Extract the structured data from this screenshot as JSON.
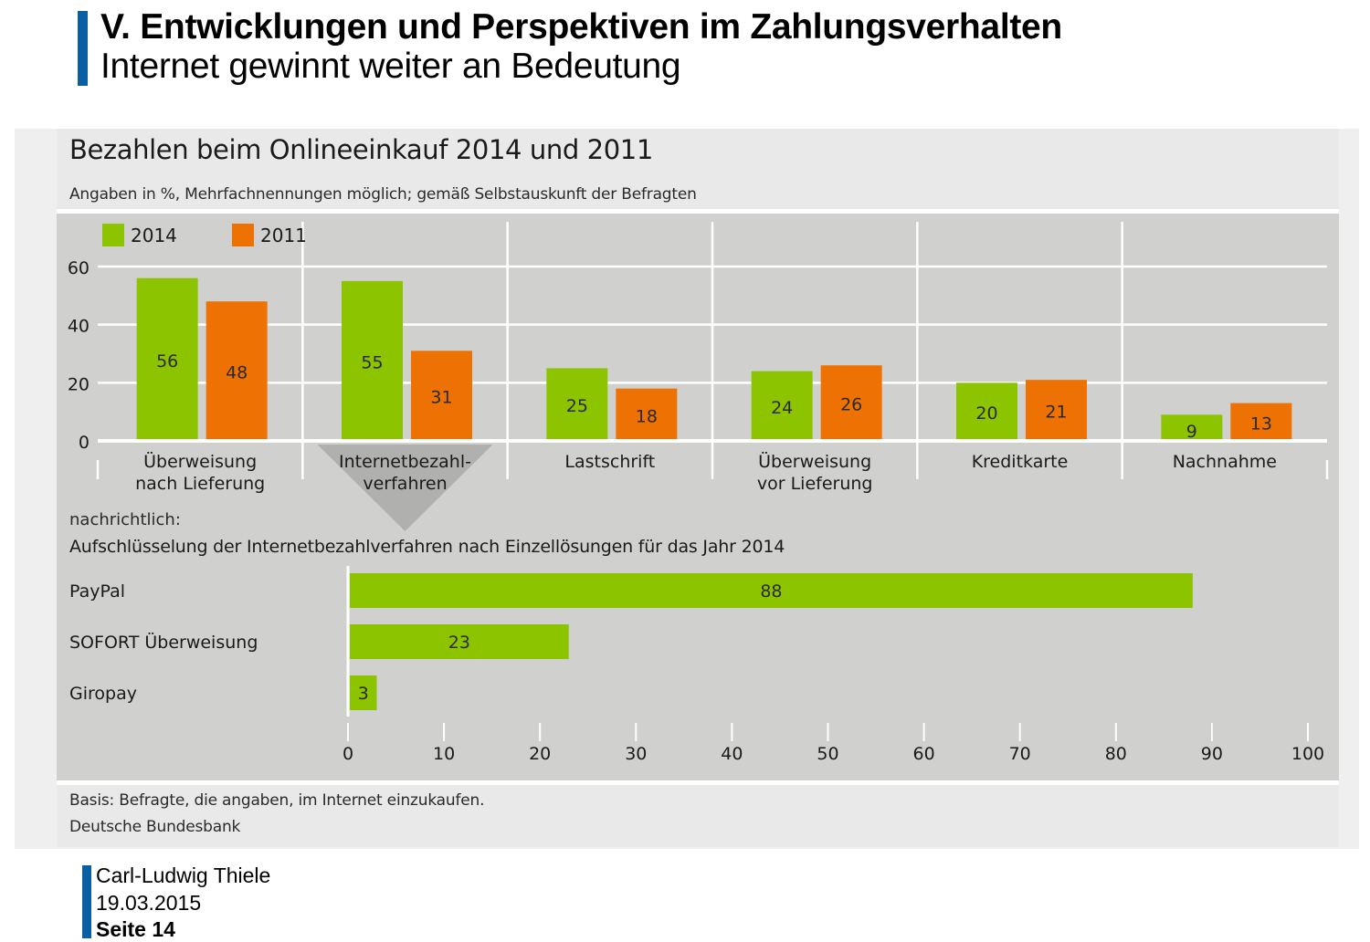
{
  "slide": {
    "title": "V. Entwicklungen und Perspektiven im Zahlungsverhalten",
    "subtitle": "Internet gewinnt weiter an Bedeutung",
    "accent_color": "#0a5fa3"
  },
  "footer": {
    "author": "Carl-Ludwig Thiele",
    "date": "19.03.2015",
    "page": "Seite 14"
  },
  "chart_data": [
    {
      "type": "bar",
      "title": "Bezahlen beim Onlineeinkauf 2014 und 2011",
      "subtitle": "Angaben in %, Mehrfachnennungen möglich; gemäß Selbstauskunft der Befragten",
      "categories": [
        "Überweisung\nnach Lieferung",
        "Internetbezahl-\nverfahren",
        "Lastschrift",
        "Überweisung\nvor Lieferung",
        "Kreditkarte",
        "Nachnahme"
      ],
      "category_lines": [
        [
          "Überweisung",
          "nach Lieferung"
        ],
        [
          "Internetbezahl-",
          "verfahren"
        ],
        [
          "Lastschrift"
        ],
        [
          "Überweisung",
          "vor Lieferung"
        ],
        [
          "Kreditkarte"
        ],
        [
          "Nachnahme"
        ]
      ],
      "series": [
        {
          "name": "2014",
          "color": "#8dc400",
          "values": [
            56,
            55,
            25,
            24,
            20,
            9
          ]
        },
        {
          "name": "2011",
          "color": "#ee7203",
          "values": [
            48,
            31,
            18,
            26,
            21,
            13
          ]
        }
      ],
      "xlabel": "",
      "ylabel": "",
      "ylim": [
        0,
        60
      ],
      "yticks": [
        0,
        20,
        40,
        60
      ],
      "grid": true,
      "legend": "top-left",
      "highlighted_category": "Internetbezahl-\nverfahren"
    },
    {
      "type": "bar",
      "orientation": "horizontal",
      "prefix": "nachrichtlich:",
      "title": "Aufschlüsselung der Internetbezahlverfahren nach Einzellösungen für das Jahr 2014",
      "categories": [
        "PayPal",
        "SOFORT Überweisung",
        "Giropay"
      ],
      "values": [
        88,
        23,
        3
      ],
      "color": "#8dc400",
      "xlim": [
        0,
        100
      ],
      "xticks": [
        0,
        10,
        20,
        30,
        40,
        50,
        60,
        70,
        80,
        90,
        100
      ],
      "grid": false
    }
  ],
  "notes": {
    "basis": "Basis: Befragte, die angaben, im Internet einzukaufen.",
    "source": "Deutsche Bundesbank"
  }
}
